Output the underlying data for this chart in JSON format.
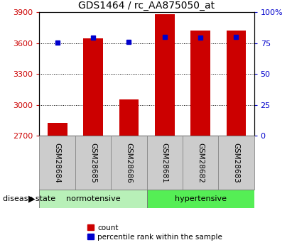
{
  "title": "GDS1464 / rc_AA875050_at",
  "categories": [
    "GSM28684",
    "GSM28685",
    "GSM28686",
    "GSM28681",
    "GSM28682",
    "GSM28683"
  ],
  "groups": [
    {
      "name": "normotensive",
      "indices": [
        0,
        1,
        2
      ],
      "color": "#b8f0b8"
    },
    {
      "name": "hypertensive",
      "indices": [
        3,
        4,
        5
      ],
      "color": "#55ee55"
    }
  ],
  "counts": [
    2830,
    3650,
    3055,
    3880,
    3720,
    3720
  ],
  "percentiles": [
    75.5,
    79.5,
    76.0,
    80.0,
    79.5,
    80.0
  ],
  "ymin": 2700,
  "ymax": 3900,
  "yticks_left": [
    2700,
    3000,
    3300,
    3600,
    3900
  ],
  "yticks_right": [
    0,
    25,
    50,
    75,
    100
  ],
  "bar_color": "#cc0000",
  "percentile_color": "#0000cc",
  "bar_width": 0.55,
  "group_label": "disease state",
  "legend_items": [
    {
      "label": "count",
      "color": "#cc0000"
    },
    {
      "label": "percentile rank within the sample",
      "color": "#0000cc"
    }
  ],
  "title_fontsize": 10,
  "axis_fontsize": 8,
  "label_fontsize": 7.5,
  "group_fontsize": 8
}
